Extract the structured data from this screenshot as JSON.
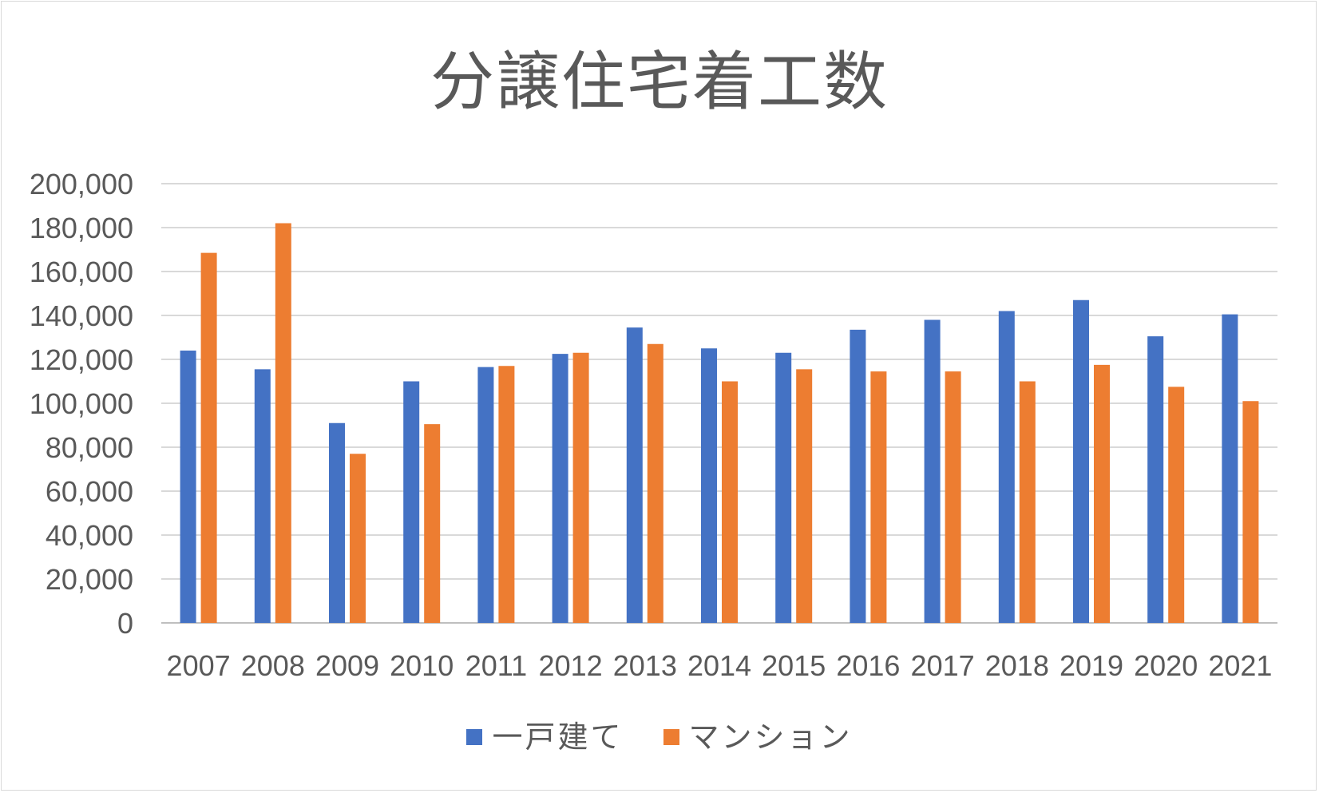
{
  "chart_data": {
    "type": "bar",
    "title": "分譲住宅着工数",
    "categories": [
      "2007",
      "2008",
      "2009",
      "2010",
      "2011",
      "2012",
      "2013",
      "2014",
      "2015",
      "2016",
      "2017",
      "2018",
      "2019",
      "2020",
      "2021"
    ],
    "series": [
      {
        "name": "一戸建て",
        "color": "#4472c4",
        "values": [
          124000,
          115500,
          91000,
          110000,
          116500,
          122500,
          134500,
          125000,
          123000,
          133500,
          138000,
          142000,
          147000,
          130500,
          140500
        ]
      },
      {
        "name": "マンション",
        "color": "#ed7d31",
        "values": [
          168500,
          182000,
          77000,
          90500,
          117000,
          123000,
          127000,
          110000,
          115500,
          114500,
          114500,
          110000,
          117500,
          107500,
          101000
        ]
      }
    ],
    "ylim": [
      0,
      200000
    ],
    "yticks": [
      "0",
      "20,000",
      "40,000",
      "60,000",
      "80,000",
      "100,000",
      "120,000",
      "140,000",
      "160,000",
      "180,000",
      "200,000"
    ],
    "grid": true,
    "legend_position": "bottom"
  }
}
